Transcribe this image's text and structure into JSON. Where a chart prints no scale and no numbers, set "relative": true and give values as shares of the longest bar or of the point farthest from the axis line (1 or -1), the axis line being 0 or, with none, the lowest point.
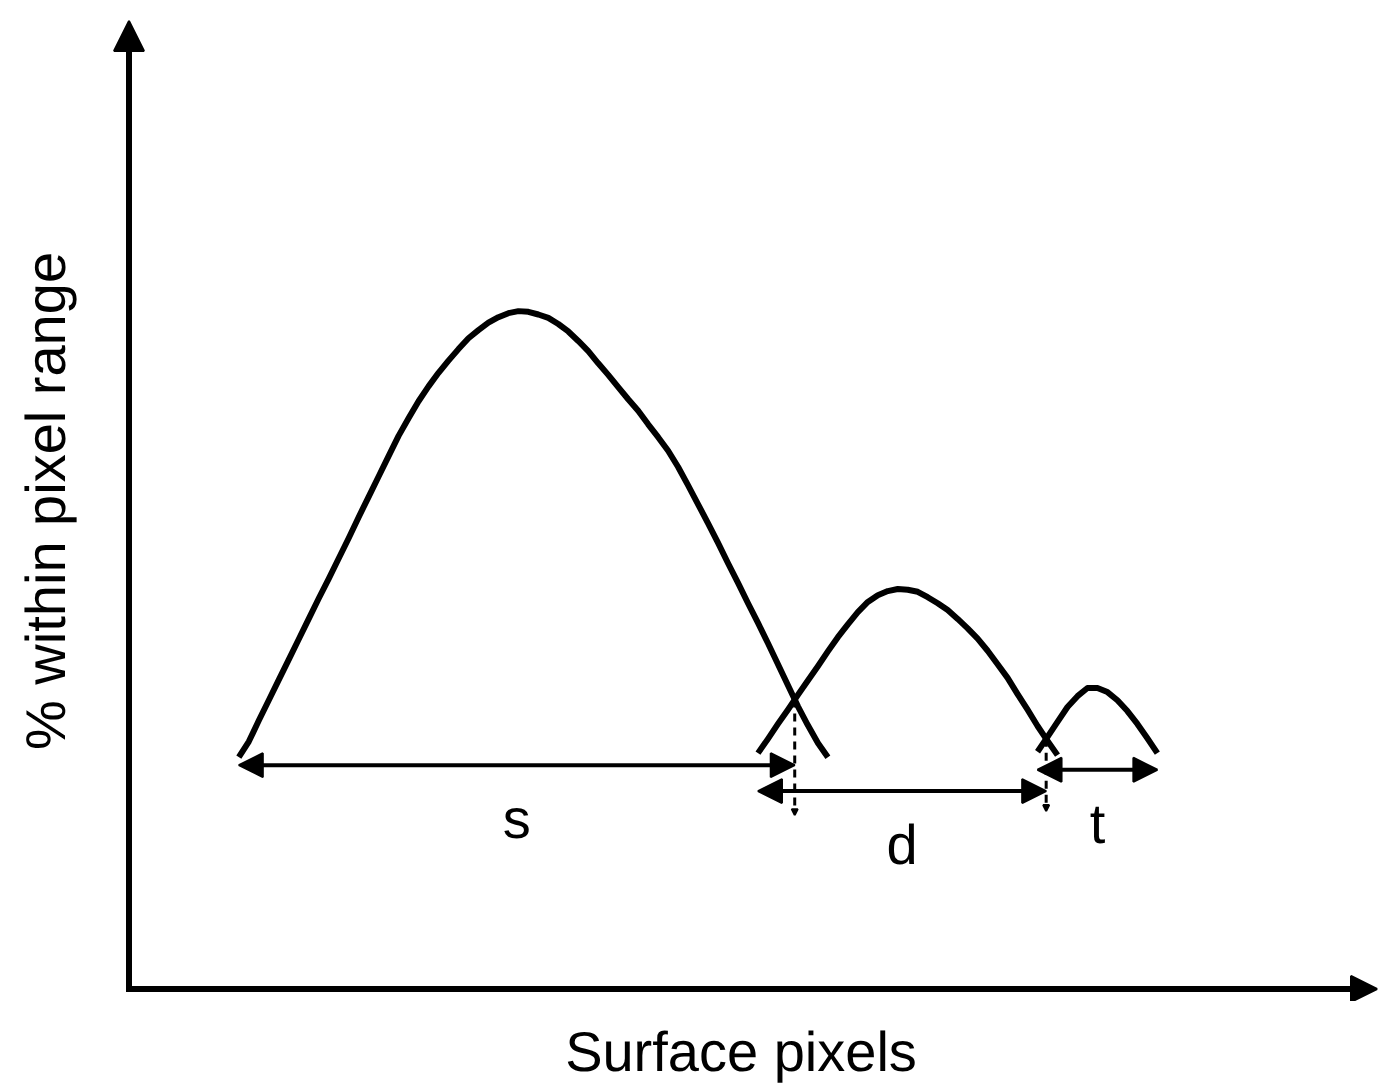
{
  "chart_data": {
    "type": "line",
    "xlabel": "Surface pixels",
    "ylabel": "% within pixel range",
    "relative": true,
    "tick_labels": false,
    "annotations": [
      "s",
      "d",
      "t"
    ],
    "categories": [
      null,
      null,
      null,
      null,
      null,
      null,
      null,
      null,
      null,
      null,
      null,
      null,
      null,
      null,
      null,
      null,
      null,
      null,
      null,
      null,
      null,
      null,
      null,
      null,
      null,
      null,
      null,
      null,
      null,
      null,
      null,
      null,
      null,
      null,
      null,
      null,
      null,
      null,
      null,
      null,
      null,
      null,
      null,
      null,
      null,
      null,
      null,
      null,
      null,
      null,
      null,
      null,
      null,
      null,
      null,
      null,
      null,
      null,
      null,
      null,
      null,
      null,
      null,
      null,
      null,
      null,
      null,
      null,
      null,
      null,
      null,
      null,
      null,
      null,
      null,
      null,
      null,
      null,
      null,
      null,
      null,
      null,
      null,
      null,
      null,
      null,
      null,
      null,
      null,
      null,
      null,
      null,
      null,
      null,
      null,
      null,
      null,
      null,
      null,
      null,
      null,
      null,
      null,
      null,
      null,
      null,
      null,
      null,
      null,
      null,
      null,
      null,
      null,
      null,
      null,
      null,
      null,
      null,
      null,
      null,
      null,
      null,
      null,
      null
    ],
    "series": [
      {
        "color": "#000000",
        "values": [
          null,
          null,
          null,
          null,
          null,
          null,
          null,
          null,
          null,
          null,
          0.342,
          0.365,
          0.396,
          0.426,
          0.456,
          0.486,
          0.516,
          0.546,
          0.576,
          0.605,
          0.635,
          0.665,
          0.696,
          0.726,
          0.756,
          0.786,
          0.816,
          0.842,
          0.867,
          0.889,
          0.909,
          0.927,
          0.944,
          0.96,
          0.972,
          0.983,
          0.991,
          0.997,
          1.0,
          0.999,
          0.995,
          0.99,
          0.981,
          0.97,
          0.956,
          0.941,
          0.923,
          0.906,
          0.888,
          0.87,
          0.853,
          0.833,
          0.814,
          0.794,
          0.77,
          0.743,
          0.715,
          0.687,
          0.658,
          0.628,
          0.599,
          0.569,
          0.54,
          0.51,
          0.479,
          0.448,
          0.417,
          0.389,
          0.363,
          0.342,
          null,
          null,
          null,
          null,
          null,
          null,
          null,
          null,
          null,
          null,
          null,
          null,
          null,
          null,
          null,
          null,
          null,
          null,
          null,
          null,
          null,
          null,
          null,
          null,
          null,
          null,
          null,
          null,
          null,
          null,
          null,
          null,
          null,
          null,
          null,
          null,
          null,
          null,
          null,
          null,
          null,
          null,
          null,
          null,
          null,
          null,
          null,
          null,
          null,
          null,
          null,
          null,
          null,
          null
        ]
      },
      {
        "color": "#000000",
        "values": [
          null,
          null,
          null,
          null,
          null,
          null,
          null,
          null,
          null,
          null,
          null,
          null,
          null,
          null,
          null,
          null,
          null,
          null,
          null,
          null,
          null,
          null,
          null,
          null,
          null,
          null,
          null,
          null,
          null,
          null,
          null,
          null,
          null,
          null,
          null,
          null,
          null,
          null,
          null,
          null,
          null,
          null,
          null,
          null,
          null,
          null,
          null,
          null,
          null,
          null,
          null,
          null,
          null,
          null,
          null,
          null,
          null,
          null,
          null,
          null,
          null,
          null,
          0.348,
          0.369,
          0.391,
          0.412,
          0.434,
          0.455,
          0.476,
          0.498,
          0.519,
          0.538,
          0.556,
          0.571,
          0.581,
          0.587,
          0.59,
          0.589,
          0.586,
          0.578,
          0.569,
          0.559,
          0.546,
          0.532,
          0.517,
          0.499,
          0.479,
          0.459,
          0.435,
          0.412,
          0.388,
          0.366,
          0.345,
          null,
          null,
          null,
          null,
          null,
          null,
          null,
          null,
          null,
          null,
          null,
          null,
          null,
          null,
          null,
          null,
          null,
          null,
          null,
          null,
          null,
          null,
          null,
          null,
          null,
          null,
          null,
          null,
          null,
          null,
          null
        ]
      },
      {
        "color": "#000000",
        "values": [
          null,
          null,
          null,
          null,
          null,
          null,
          null,
          null,
          null,
          null,
          null,
          null,
          null,
          null,
          null,
          null,
          null,
          null,
          null,
          null,
          null,
          null,
          null,
          null,
          null,
          null,
          null,
          null,
          null,
          null,
          null,
          null,
          null,
          null,
          null,
          null,
          null,
          null,
          null,
          null,
          null,
          null,
          null,
          null,
          null,
          null,
          null,
          null,
          null,
          null,
          null,
          null,
          null,
          null,
          null,
          null,
          null,
          null,
          null,
          null,
          null,
          null,
          null,
          null,
          null,
          null,
          null,
          null,
          null,
          null,
          null,
          null,
          null,
          null,
          null,
          null,
          null,
          null,
          null,
          null,
          null,
          null,
          null,
          null,
          null,
          null,
          null,
          null,
          null,
          null,
          0.35,
          0.372,
          0.394,
          0.416,
          0.432,
          0.444,
          0.444,
          0.438,
          0.426,
          0.41,
          0.391,
          0.37,
          0.348,
          null,
          null,
          null,
          null,
          null,
          null,
          null,
          null,
          null,
          null,
          null,
          null,
          null,
          null,
          null,
          null,
          null,
          null,
          null,
          null,
          null
        ]
      }
    ]
  }
}
